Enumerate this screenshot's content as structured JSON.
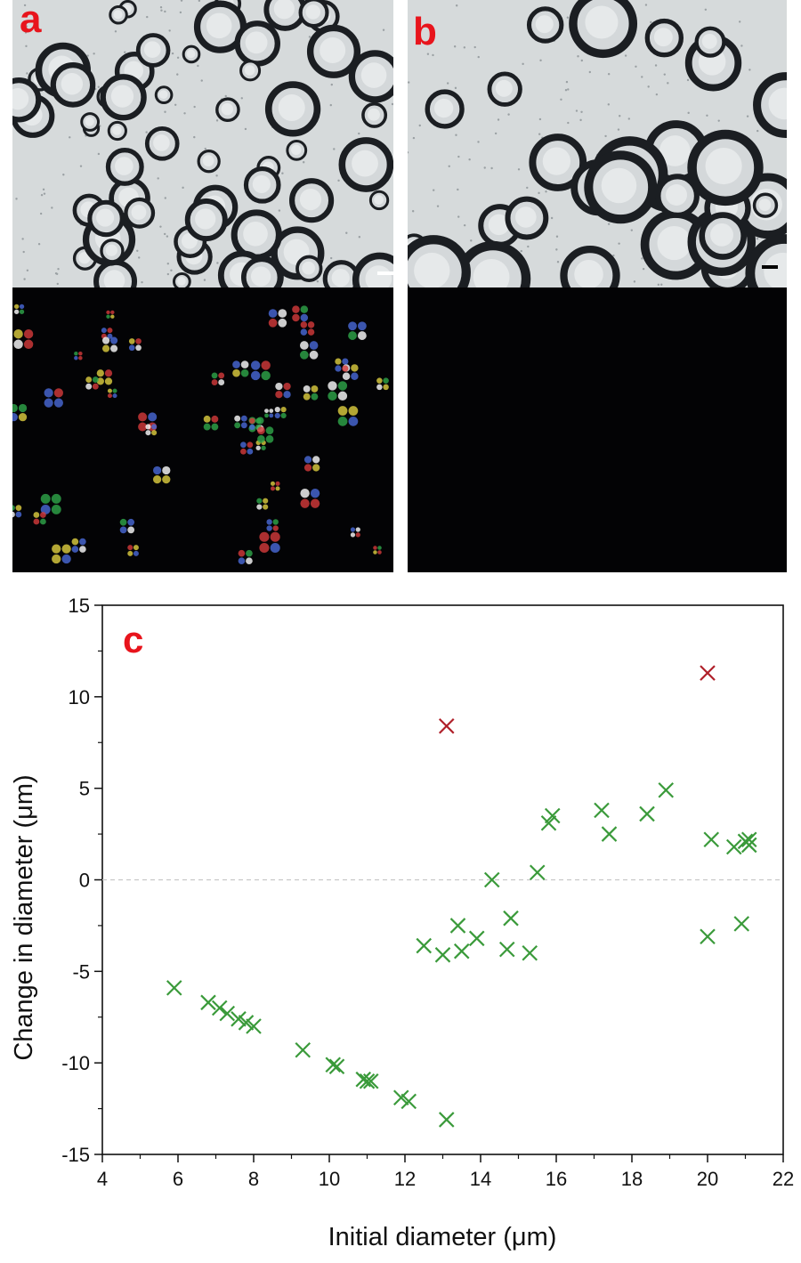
{
  "panels": {
    "a": {
      "label": "a",
      "label_color": "#e8141c"
    },
    "b": {
      "label": "b",
      "label_color": "#e8141c"
    },
    "c": {
      "label": "c",
      "label_color": "#e8141c"
    }
  },
  "colors": {
    "bright_field_bg": "#d6dadb",
    "droplet_ring": "#1b1e22",
    "polarized_bg": "#030305",
    "series_green": "#3a9a3a",
    "series_red": "#b0202a",
    "zero_line": "#c8c8c8"
  },
  "chart_data": {
    "type": "scatter",
    "xlabel": "Initial diameter (μm)",
    "ylabel": "Change in diameter (μm)",
    "xlim": [
      4,
      22
    ],
    "ylim": [
      -15,
      15
    ],
    "xticks": [
      4,
      6,
      8,
      10,
      12,
      14,
      16,
      18,
      20,
      22
    ],
    "yticks": [
      -15,
      -10,
      -5,
      0,
      5,
      10,
      15
    ],
    "zero_line": "dashed",
    "marker": "x",
    "series": [
      {
        "color": "#3a9a3a",
        "points": [
          [
            5.9,
            -5.9
          ],
          [
            6.8,
            -6.7
          ],
          [
            7.1,
            -7.0
          ],
          [
            7.3,
            -7.3
          ],
          [
            7.6,
            -7.6
          ],
          [
            7.8,
            -7.8
          ],
          [
            8.0,
            -8.0
          ],
          [
            9.3,
            -9.3
          ],
          [
            10.1,
            -10.1
          ],
          [
            10.2,
            -10.2
          ],
          [
            10.9,
            -10.9
          ],
          [
            11.0,
            -11.0
          ],
          [
            11.1,
            -11.0
          ],
          [
            11.9,
            -11.9
          ],
          [
            12.1,
            -12.1
          ],
          [
            13.1,
            -13.1
          ],
          [
            12.5,
            -3.6
          ],
          [
            13.0,
            -4.1
          ],
          [
            13.4,
            -2.5
          ],
          [
            13.5,
            -3.9
          ],
          [
            13.9,
            -3.2
          ],
          [
            14.3,
            0.0
          ],
          [
            14.7,
            -3.8
          ],
          [
            14.8,
            -2.1
          ],
          [
            15.3,
            -4.0
          ],
          [
            15.5,
            0.4
          ],
          [
            15.8,
            3.1
          ],
          [
            15.9,
            3.5
          ],
          [
            17.2,
            3.8
          ],
          [
            17.4,
            2.5
          ],
          [
            18.4,
            3.6
          ],
          [
            18.9,
            4.9
          ],
          [
            20.0,
            -3.1
          ],
          [
            20.1,
            2.2
          ],
          [
            20.7,
            1.8
          ],
          [
            20.9,
            -2.4
          ],
          [
            21.0,
            2.1
          ],
          [
            21.1,
            1.9
          ],
          [
            21.1,
            2.2
          ]
        ]
      },
      {
        "color": "#b0202a",
        "points": [
          [
            13.1,
            8.4
          ],
          [
            20.0,
            11.3
          ]
        ]
      }
    ]
  }
}
